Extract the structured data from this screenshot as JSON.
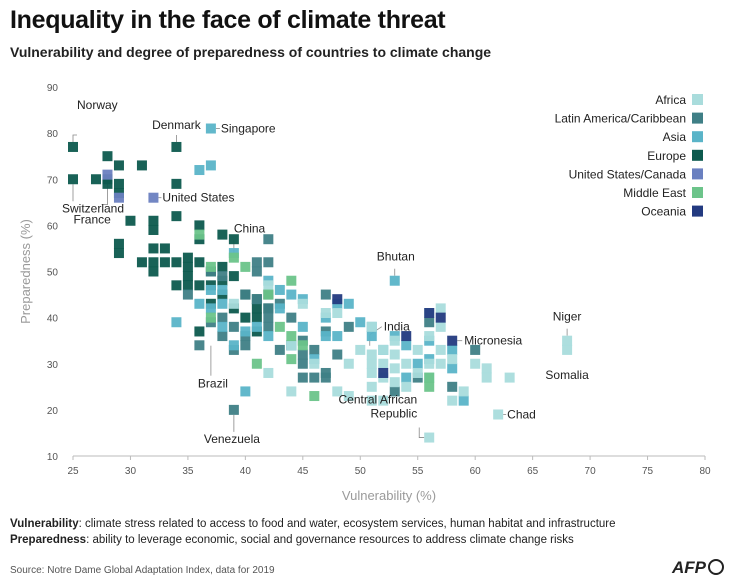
{
  "title": "Inequality in the face of climate threat",
  "subtitle": "Vulnerability and degree of preparedness of countries to climate change",
  "notes": {
    "vulnerability_term": "Vulnerability",
    "vulnerability_text": ": climate stress related to access to food and water, ecosystem services, human habitat and infrastructure",
    "preparedness_term": "Preparedness",
    "preparedness_text": ": ability to leverage economic, social and governance resources to address climate change risks"
  },
  "source": "Source: Notre Dame Global Adaptation Index, data for 2019",
  "logo": "AFP",
  "colors": {
    "Africa": "#a9dcdc",
    "Latin America/Caribbean": "#3f7f86",
    "Asia": "#5ab4c8",
    "Europe": "#0d5a4e",
    "United States/Canada": "#6a80c0",
    "Middle East": "#6cc48a",
    "Oceania": "#233a80",
    "axis": "#bbbbbb",
    "leader": "#888888"
  },
  "chart_data": {
    "type": "scatter",
    "xlabel": "Vulnerability (%)",
    "ylabel": "Preparedness (%)",
    "xlim": [
      25,
      80
    ],
    "ylim": [
      10,
      90
    ],
    "xticks": [
      25,
      30,
      35,
      40,
      45,
      50,
      55,
      60,
      65,
      70,
      75,
      80
    ],
    "yticks": [
      10,
      20,
      30,
      40,
      50,
      60,
      70,
      80,
      90
    ],
    "legend": [
      "Africa",
      "Latin America/Caribbean",
      "Asia",
      "Europe",
      "United States/Canada",
      "Middle East",
      "Oceania"
    ],
    "labels": [
      {
        "text": "Norway",
        "x": 25,
        "y": 77
      },
      {
        "text": "Denmark",
        "x": 34,
        "y": 77
      },
      {
        "text": "Singapore",
        "x": 37,
        "y": 81
      },
      {
        "text": "Switzerland",
        "x": 25,
        "y": 70
      },
      {
        "text": "France",
        "x": 28,
        "y": 71
      },
      {
        "text": "United States",
        "x": 32,
        "y": 66
      },
      {
        "text": "China",
        "x": 39,
        "y": 52
      },
      {
        "text": "Brazil",
        "x": 37,
        "y": 35
      },
      {
        "text": "Venezuela",
        "x": 39,
        "y": 20
      },
      {
        "text": "Bhutan",
        "x": 53,
        "y": 48
      },
      {
        "text": "India",
        "x": 51,
        "y": 35
      },
      {
        "text": "Micronesia",
        "x": 58,
        "y": 35
      },
      {
        "text": "Niger",
        "x": 68,
        "y": 35
      },
      {
        "text": "Somalia",
        "x": 68,
        "y": 33
      },
      {
        "text": "Chad",
        "x": 62,
        "y": 19
      },
      {
        "text": "Central African",
        "x": 56,
        "y": 14
      },
      {
        "text": "Republic",
        "x": 56,
        "y": 14
      }
    ],
    "series": [
      {
        "name": "Europe",
        "points": [
          [
            25,
            77
          ],
          [
            25,
            70
          ],
          [
            27,
            70
          ],
          [
            28,
            75
          ],
          [
            28,
            70
          ],
          [
            29,
            73
          ],
          [
            29,
            69
          ],
          [
            29,
            67
          ],
          [
            30,
            61
          ],
          [
            31,
            73
          ],
          [
            34,
            77
          ],
          [
            34,
            69
          ],
          [
            34,
            62
          ],
          [
            28,
            69
          ],
          [
            29,
            56
          ],
          [
            29,
            54
          ],
          [
            31,
            52
          ],
          [
            32,
            61
          ],
          [
            32,
            59
          ],
          [
            32,
            55
          ],
          [
            32,
            52
          ],
          [
            32,
            50
          ],
          [
            33,
            55
          ],
          [
            33,
            52
          ],
          [
            34,
            52
          ],
          [
            34,
            47
          ],
          [
            35,
            53
          ],
          [
            35,
            51
          ],
          [
            35,
            49
          ],
          [
            35,
            47
          ],
          [
            36,
            60
          ],
          [
            36,
            57
          ],
          [
            36,
            52
          ],
          [
            36,
            47
          ],
          [
            36,
            37
          ],
          [
            37,
            50
          ],
          [
            37,
            47
          ],
          [
            37,
            43
          ],
          [
            38,
            58
          ],
          [
            38,
            51
          ],
          [
            38,
            48
          ],
          [
            38,
            45
          ],
          [
            39,
            57
          ],
          [
            39,
            49
          ],
          [
            39,
            42
          ],
          [
            40,
            45
          ],
          [
            40,
            40
          ],
          [
            41,
            44
          ],
          [
            41,
            42
          ],
          [
            41,
            40
          ],
          [
            41,
            37
          ],
          [
            42,
            45
          ],
          [
            42,
            42
          ]
        ]
      },
      {
        "name": "Latin America/Caribbean",
        "points": [
          [
            35,
            45
          ],
          [
            36,
            34
          ],
          [
            37,
            50
          ],
          [
            37,
            39
          ],
          [
            38,
            49
          ],
          [
            38,
            40
          ],
          [
            38,
            36
          ],
          [
            39,
            38
          ],
          [
            39,
            33
          ],
          [
            39,
            20
          ],
          [
            40,
            36
          ],
          [
            40,
            34
          ],
          [
            40,
            45
          ],
          [
            41,
            52
          ],
          [
            41,
            50
          ],
          [
            41,
            44
          ],
          [
            42,
            57
          ],
          [
            42,
            52
          ],
          [
            42,
            42
          ],
          [
            42,
            40
          ],
          [
            42,
            38
          ],
          [
            43,
            43
          ],
          [
            43,
            33
          ],
          [
            44,
            40
          ],
          [
            44,
            34
          ],
          [
            45,
            35
          ],
          [
            45,
            32
          ],
          [
            45,
            30
          ],
          [
            45,
            27
          ],
          [
            46,
            33
          ],
          [
            46,
            27
          ],
          [
            47,
            45
          ],
          [
            47,
            37
          ],
          [
            47,
            28
          ],
          [
            47,
            27
          ],
          [
            48,
            32
          ],
          [
            49,
            38
          ],
          [
            53,
            24
          ],
          [
            55,
            27
          ],
          [
            56,
            39
          ],
          [
            58,
            25
          ],
          [
            60,
            33
          ]
        ]
      },
      {
        "name": "Asia",
        "points": [
          [
            37,
            81
          ],
          [
            36,
            72
          ],
          [
            37,
            73
          ],
          [
            34,
            39
          ],
          [
            36,
            43
          ],
          [
            37,
            42
          ],
          [
            37,
            46
          ],
          [
            38,
            46
          ],
          [
            38,
            43
          ],
          [
            38,
            38
          ],
          [
            39,
            34
          ],
          [
            39,
            54
          ],
          [
            40,
            37
          ],
          [
            40,
            24
          ],
          [
            41,
            38
          ],
          [
            42,
            36
          ],
          [
            42,
            48
          ],
          [
            43,
            46
          ],
          [
            43,
            42
          ],
          [
            44,
            45
          ],
          [
            44,
            34
          ],
          [
            45,
            44
          ],
          [
            45,
            38
          ],
          [
            46,
            31
          ],
          [
            47,
            40
          ],
          [
            47,
            36
          ],
          [
            48,
            43
          ],
          [
            48,
            36
          ],
          [
            49,
            43
          ],
          [
            50,
            39
          ],
          [
            51,
            38
          ],
          [
            51,
            36
          ],
          [
            52,
            33
          ],
          [
            53,
            48
          ],
          [
            53,
            36
          ],
          [
            54,
            27
          ],
          [
            54,
            34
          ],
          [
            55,
            30
          ],
          [
            56,
            35
          ],
          [
            56,
            31
          ],
          [
            58,
            29
          ],
          [
            58,
            33
          ],
          [
            59,
            22
          ]
        ]
      },
      {
        "name": "Africa",
        "points": [
          [
            39,
            43
          ],
          [
            42,
            47
          ],
          [
            42,
            28
          ],
          [
            44,
            34
          ],
          [
            44,
            24
          ],
          [
            45,
            43
          ],
          [
            46,
            30
          ],
          [
            47,
            41
          ],
          [
            48,
            24
          ],
          [
            48,
            41
          ],
          [
            49,
            30
          ],
          [
            49,
            23
          ],
          [
            50,
            33
          ],
          [
            51,
            38
          ],
          [
            51,
            32
          ],
          [
            51,
            30
          ],
          [
            51,
            28
          ],
          [
            51,
            25
          ],
          [
            51,
            22
          ],
          [
            52,
            33
          ],
          [
            52,
            30
          ],
          [
            52,
            27
          ],
          [
            52,
            22
          ],
          [
            53,
            35
          ],
          [
            53,
            32
          ],
          [
            53,
            29
          ],
          [
            53,
            26
          ],
          [
            54,
            30
          ],
          [
            54,
            25
          ],
          [
            55,
            33
          ],
          [
            55,
            28
          ],
          [
            56,
            41
          ],
          [
            56,
            36
          ],
          [
            56,
            30
          ],
          [
            56,
            27
          ],
          [
            56,
            14
          ],
          [
            57,
            42
          ],
          [
            57,
            38
          ],
          [
            57,
            33
          ],
          [
            57,
            30
          ],
          [
            58,
            31
          ],
          [
            58,
            22
          ],
          [
            59,
            24
          ],
          [
            60,
            30
          ],
          [
            61,
            29
          ],
          [
            61,
            27
          ],
          [
            62,
            19
          ],
          [
            63,
            27
          ],
          [
            68,
            35
          ],
          [
            68,
            33
          ]
        ]
      },
      {
        "name": "United States/Canada",
        "points": [
          [
            32,
            66
          ],
          [
            28,
            71
          ],
          [
            29,
            66
          ]
        ]
      },
      {
        "name": "Middle East",
        "points": [
          [
            36,
            58
          ],
          [
            37,
            40
          ],
          [
            37,
            51
          ],
          [
            39,
            53
          ],
          [
            40,
            51
          ],
          [
            41,
            30
          ],
          [
            42,
            45
          ],
          [
            43,
            38
          ],
          [
            44,
            48
          ],
          [
            44,
            36
          ],
          [
            44,
            31
          ],
          [
            45,
            34
          ],
          [
            46,
            23
          ],
          [
            56,
            25
          ],
          [
            56,
            27
          ]
        ]
      },
      {
        "name": "Oceania",
        "points": [
          [
            48,
            44
          ],
          [
            52,
            28
          ],
          [
            54,
            36
          ],
          [
            56,
            41
          ],
          [
            57,
            40
          ],
          [
            58,
            35
          ]
        ]
      }
    ]
  }
}
